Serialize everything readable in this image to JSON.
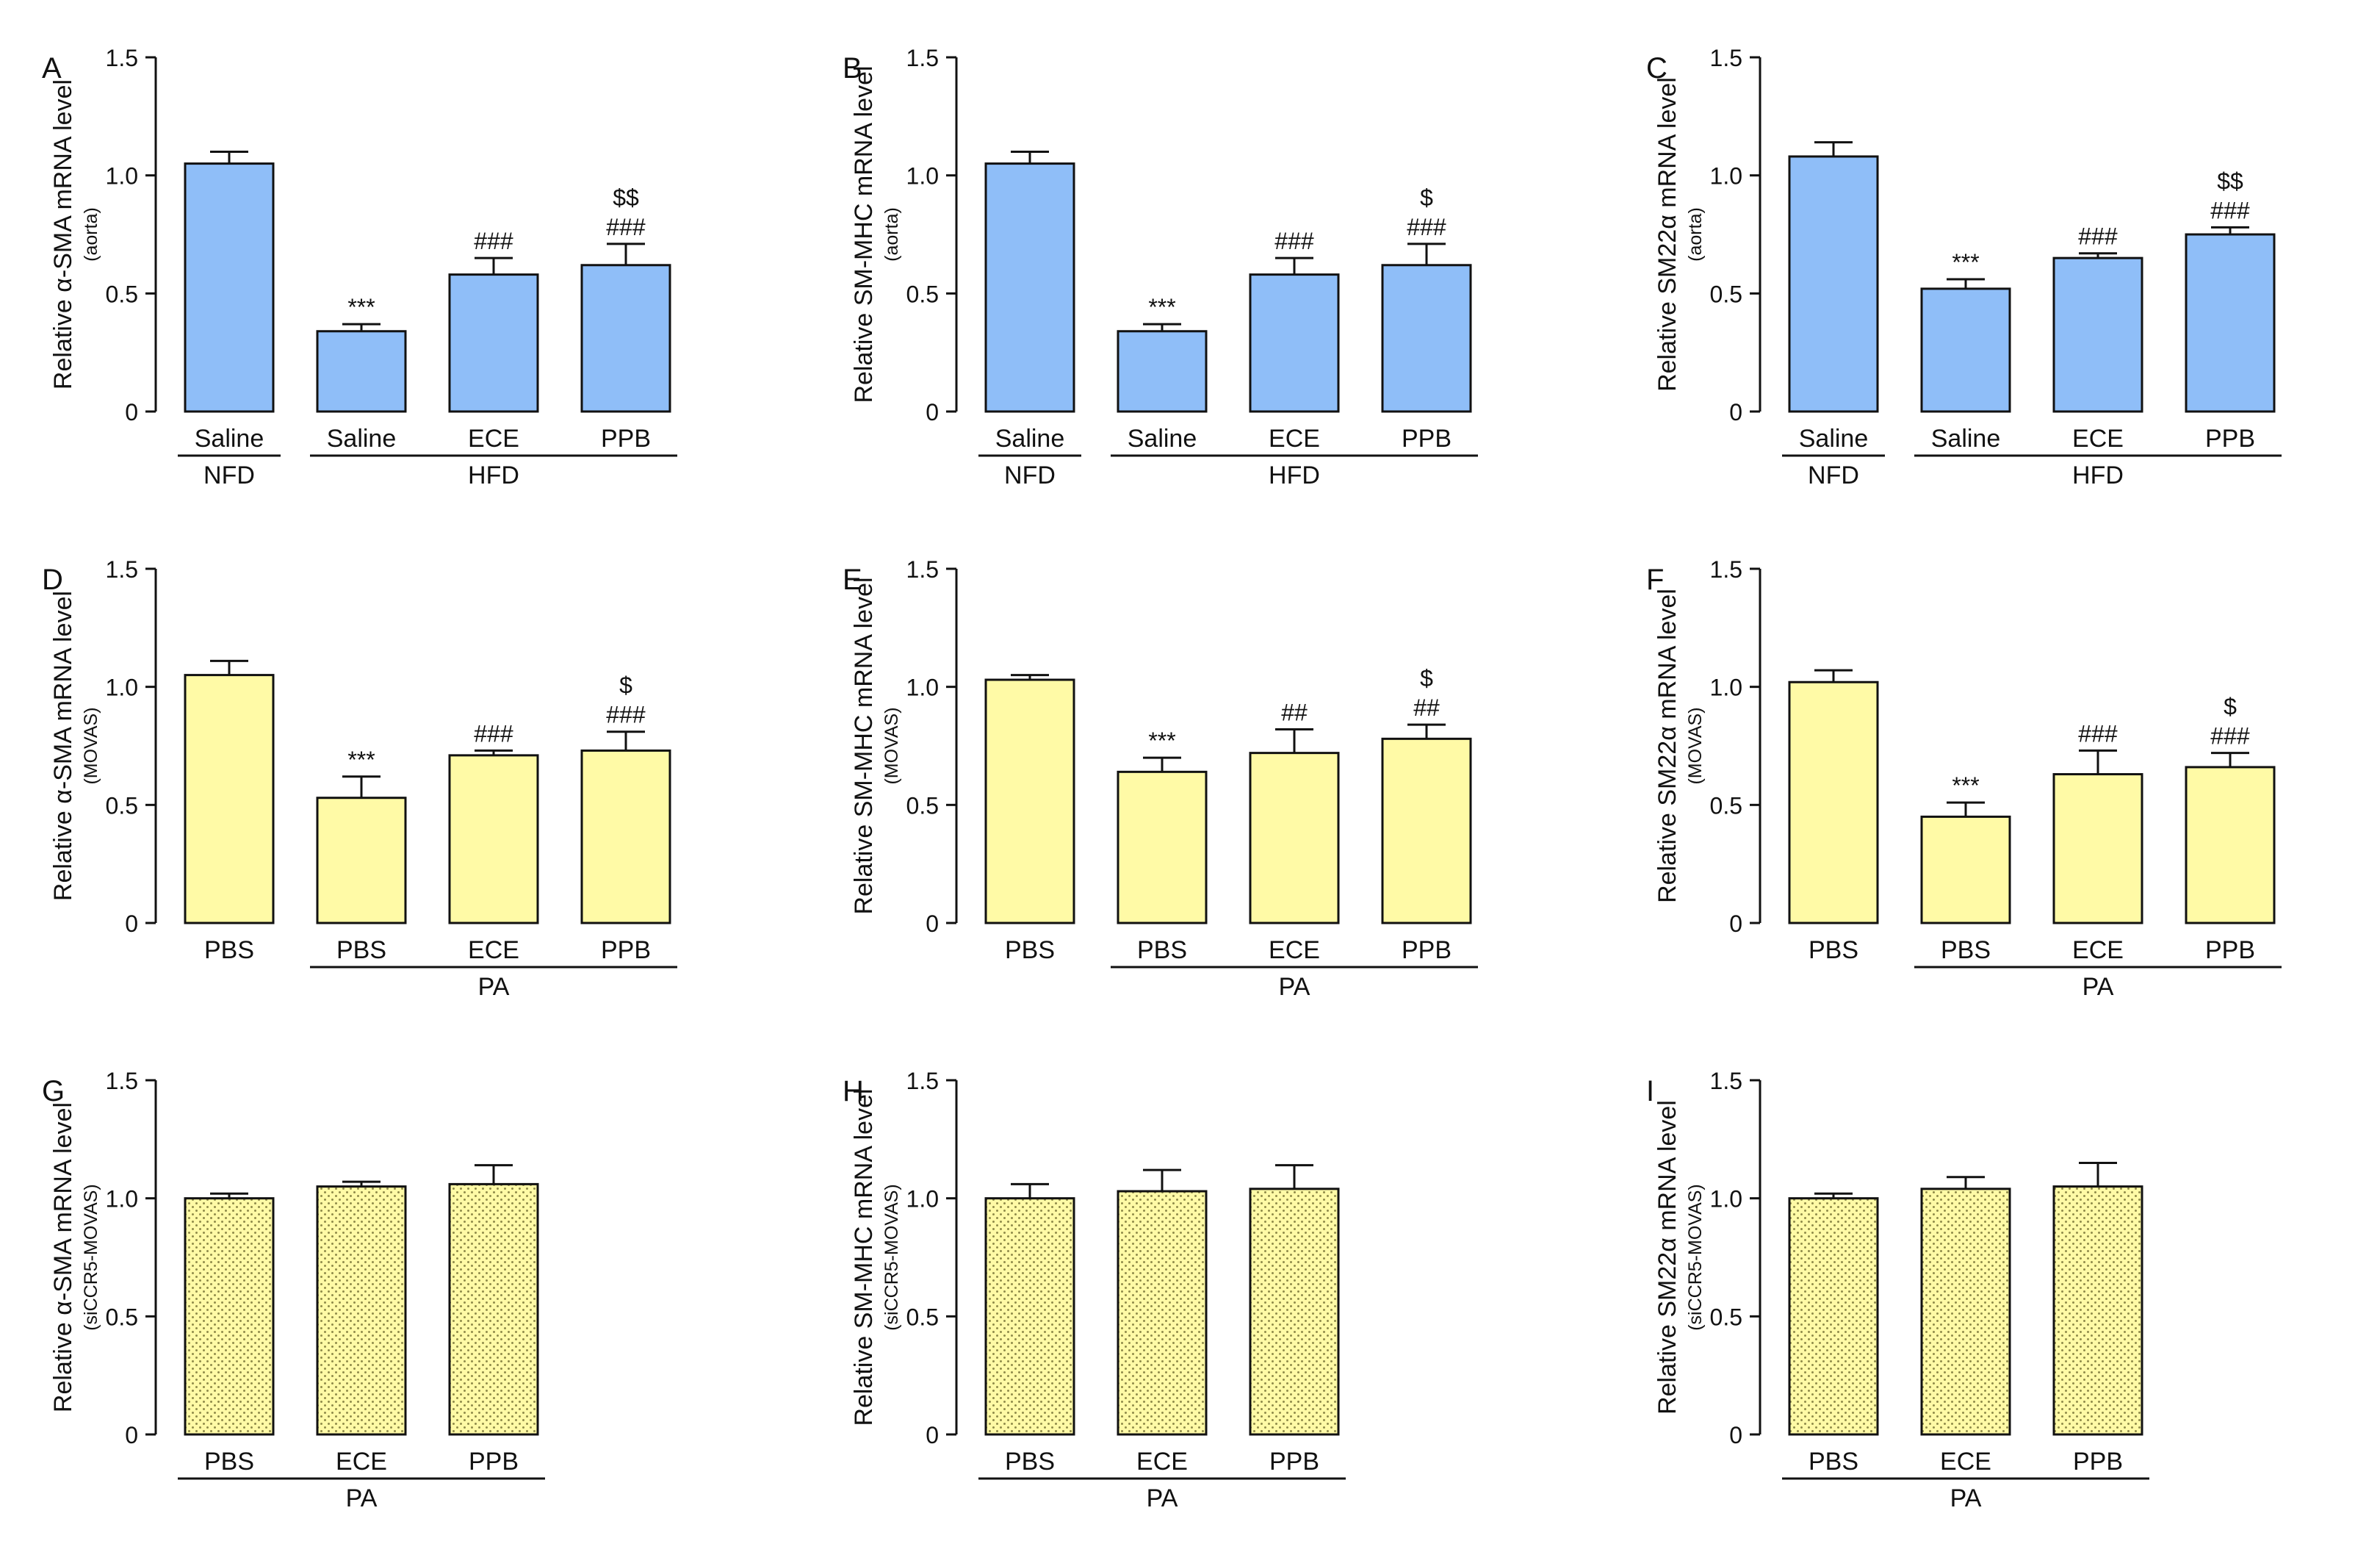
{
  "colors": {
    "blue": "#8fbef8",
    "yellow": "#fffaa6",
    "stroke": "#111111",
    "dot": "#8f8b4a"
  },
  "chart_data": [
    {
      "panel": "A",
      "type": "bar",
      "fill": "blue",
      "pattern": false,
      "ylabel": "Relative α-SMA mRNA level",
      "ysublabel": "(aorta)",
      "ylim": [
        0,
        1.5
      ],
      "yticks": [
        "0",
        "0.5",
        "1.0",
        "1.5"
      ],
      "categories": [
        "Saline",
        "Saline",
        "ECE",
        "PPB"
      ],
      "values": [
        1.05,
        0.34,
        0.58,
        0.62
      ],
      "errors": [
        0.05,
        0.03,
        0.07,
        0.09
      ],
      "annotations": [
        [],
        [
          "***"
        ],
        [
          "###"
        ],
        [
          "$$",
          "###"
        ]
      ],
      "groups": [
        {
          "label": "NFD",
          "from": 0,
          "to": 0
        },
        {
          "label": "HFD",
          "from": 1,
          "to": 3
        }
      ]
    },
    {
      "panel": "B",
      "type": "bar",
      "fill": "blue",
      "pattern": false,
      "ylabel": "Relative SM-MHC mRNA level",
      "ysublabel": "(aorta)",
      "ylim": [
        0,
        1.5
      ],
      "yticks": [
        "0",
        "0.5",
        "1.0",
        "1.5"
      ],
      "categories": [
        "Saline",
        "Saline",
        "ECE",
        "PPB"
      ],
      "values": [
        1.05,
        0.34,
        0.58,
        0.62
      ],
      "errors": [
        0.05,
        0.03,
        0.07,
        0.09
      ],
      "annotations": [
        [],
        [
          "***"
        ],
        [
          "###"
        ],
        [
          "$",
          "###"
        ]
      ],
      "groups": [
        {
          "label": "NFD",
          "from": 0,
          "to": 0
        },
        {
          "label": "HFD",
          "from": 1,
          "to": 3
        }
      ]
    },
    {
      "panel": "C",
      "type": "bar",
      "fill": "blue",
      "pattern": false,
      "ylabel": "Relative SM22α mRNA level",
      "ysublabel": "(aorta)",
      "ylim": [
        0,
        1.5
      ],
      "yticks": [
        "0",
        "0.5",
        "1.0",
        "1.5"
      ],
      "categories": [
        "Saline",
        "Saline",
        "ECE",
        "PPB"
      ],
      "values": [
        1.08,
        0.52,
        0.65,
        0.75
      ],
      "errors": [
        0.06,
        0.04,
        0.02,
        0.03
      ],
      "annotations": [
        [],
        [
          "***"
        ],
        [
          "###"
        ],
        [
          "$$",
          "###"
        ]
      ],
      "groups": [
        {
          "label": "NFD",
          "from": 0,
          "to": 0
        },
        {
          "label": "HFD",
          "from": 1,
          "to": 3
        }
      ]
    },
    {
      "panel": "D",
      "type": "bar",
      "fill": "yellow",
      "pattern": false,
      "ylabel": "Relative α-SMA mRNA level",
      "ysublabel": "(MOVAS)",
      "ylim": [
        0,
        1.5
      ],
      "yticks": [
        "0",
        "0.5",
        "1.0",
        "1.5"
      ],
      "categories": [
        "PBS",
        "PBS",
        "ECE",
        "PPB"
      ],
      "values": [
        1.05,
        0.53,
        0.71,
        0.73
      ],
      "errors": [
        0.06,
        0.09,
        0.02,
        0.08
      ],
      "annotations": [
        [],
        [
          "***"
        ],
        [
          "###"
        ],
        [
          "$",
          "###"
        ]
      ],
      "groups": [
        {
          "label": "PA",
          "from": 1,
          "to": 3
        }
      ]
    },
    {
      "panel": "E",
      "type": "bar",
      "fill": "yellow",
      "pattern": false,
      "ylabel": "Relative SM-MHC mRNA level",
      "ysublabel": "(MOVAS)",
      "ylim": [
        0,
        1.5
      ],
      "yticks": [
        "0",
        "0.5",
        "1.0",
        "1.5"
      ],
      "categories": [
        "PBS",
        "PBS",
        "ECE",
        "PPB"
      ],
      "values": [
        1.03,
        0.64,
        0.72,
        0.78
      ],
      "errors": [
        0.02,
        0.06,
        0.1,
        0.06
      ],
      "annotations": [
        [],
        [
          "***"
        ],
        [
          "##"
        ],
        [
          "$",
          "##"
        ]
      ],
      "groups": [
        {
          "label": "PA",
          "from": 1,
          "to": 3
        }
      ]
    },
    {
      "panel": "F",
      "type": "bar",
      "fill": "yellow",
      "pattern": false,
      "ylabel": "Relative SM22α mRNA level",
      "ysublabel": "(MOVAS)",
      "ylim": [
        0,
        1.5
      ],
      "yticks": [
        "0",
        "0.5",
        "1.0",
        "1.5"
      ],
      "categories": [
        "PBS",
        "PBS",
        "ECE",
        "PPB"
      ],
      "values": [
        1.02,
        0.45,
        0.63,
        0.66
      ],
      "errors": [
        0.05,
        0.06,
        0.1,
        0.06
      ],
      "annotations": [
        [],
        [
          "***"
        ],
        [
          "###"
        ],
        [
          "$",
          "###"
        ]
      ],
      "groups": [
        {
          "label": "PA",
          "from": 1,
          "to": 3
        }
      ]
    },
    {
      "panel": "G",
      "type": "bar",
      "fill": "yellow",
      "pattern": true,
      "ylabel": "Relative α-SMA mRNA level",
      "ysublabel": "(siCCR5-MOVAS)",
      "ylim": [
        0,
        1.5
      ],
      "yticks": [
        "0",
        "0.5",
        "1.0",
        "1.5"
      ],
      "categories": [
        "PBS",
        "ECE",
        "PPB"
      ],
      "values": [
        1.0,
        1.05,
        1.06
      ],
      "errors": [
        0.02,
        0.02,
        0.08
      ],
      "annotations": [
        [],
        [],
        []
      ],
      "groups": [
        {
          "label": "PA",
          "from": 0,
          "to": 2
        }
      ]
    },
    {
      "panel": "H",
      "type": "bar",
      "fill": "yellow",
      "pattern": true,
      "ylabel": "Relative SM-MHC mRNA level",
      "ysublabel": "(siCCR5-MOVAS)",
      "ylim": [
        0,
        1.5
      ],
      "yticks": [
        "0",
        "0.5",
        "1.0",
        "1.5"
      ],
      "categories": [
        "PBS",
        "ECE",
        "PPB"
      ],
      "values": [
        1.0,
        1.03,
        1.04
      ],
      "errors": [
        0.06,
        0.09,
        0.1
      ],
      "annotations": [
        [],
        [],
        []
      ],
      "groups": [
        {
          "label": "PA",
          "from": 0,
          "to": 2
        }
      ]
    },
    {
      "panel": "I",
      "type": "bar",
      "fill": "yellow",
      "pattern": true,
      "ylabel": "Relative SM22α mRNA level",
      "ysublabel": "(siCCR5-MOVAS)",
      "ylim": [
        0,
        1.5
      ],
      "yticks": [
        "0",
        "0.5",
        "1.0",
        "1.5"
      ],
      "categories": [
        "PBS",
        "ECE",
        "PPB"
      ],
      "values": [
        1.0,
        1.04,
        1.05
      ],
      "errors": [
        0.02,
        0.05,
        0.1
      ],
      "annotations": [
        [],
        [],
        []
      ],
      "groups": [
        {
          "label": "PA",
          "from": 0,
          "to": 2
        }
      ]
    }
  ]
}
